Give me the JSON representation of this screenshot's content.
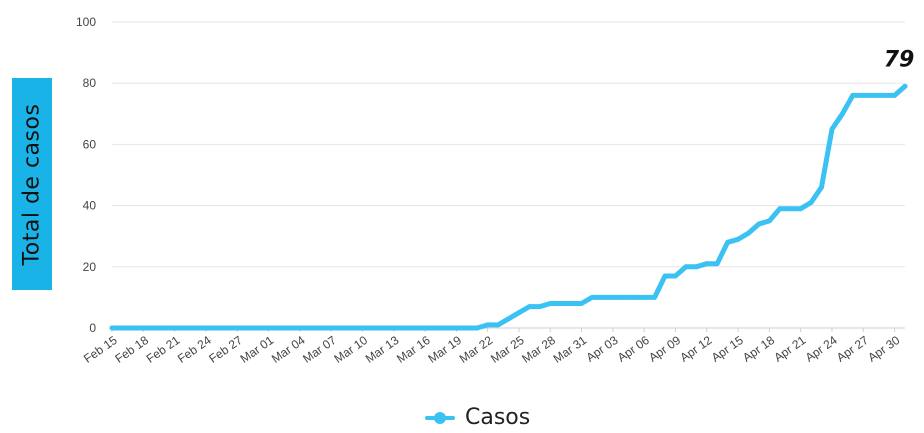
{
  "chart_data": {
    "type": "line",
    "ylabel": "Total de casos",
    "xlabel": "",
    "title": "",
    "ylim": [
      0,
      100
    ],
    "yticks": [
      0,
      20,
      40,
      60,
      80,
      100
    ],
    "grid": true,
    "legend_position": "bottom",
    "x_tick_labels": [
      "Feb 15",
      "Feb 18",
      "Feb 21",
      "Feb 24",
      "Feb 27",
      "Mar 01",
      "Mar 04",
      "Mar 07",
      "Mar 10",
      "Mar 13",
      "Mar 16",
      "Mar 19",
      "Mar 22",
      "Mar 25",
      "Mar 28",
      "Mar 31",
      "Apr 03",
      "Apr 06",
      "Apr 09",
      "Apr 12",
      "Apr 15",
      "Apr 18",
      "Apr 21",
      "Apr 24",
      "Apr 27",
      "Apr 30"
    ],
    "series": [
      {
        "name": "Casos",
        "color": "#3ac2f2",
        "x": [
          "Feb 15",
          "Mar 21",
          "Mar 22",
          "Mar 23",
          "Mar 24",
          "Mar 25",
          "Mar 26",
          "Mar 27",
          "Mar 28",
          "Mar 29",
          "Mar 30",
          "Mar 31",
          "Apr 01",
          "Apr 02",
          "Apr 03",
          "Apr 04",
          "Apr 05",
          "Apr 06",
          "Apr 07",
          "Apr 08",
          "Apr 09",
          "Apr 10",
          "Apr 11",
          "Apr 12",
          "Apr 13",
          "Apr 14",
          "Apr 15",
          "Apr 16",
          "Apr 17",
          "Apr 18",
          "Apr 19",
          "Apr 20",
          "Apr 21",
          "Apr 22",
          "Apr 23",
          "Apr 24",
          "Apr 25",
          "Apr 26",
          "Apr 27",
          "Apr 28",
          "Apr 29",
          "Apr 30",
          "May 01"
        ],
        "values": [
          0,
          0,
          1,
          1,
          3,
          5,
          7,
          7,
          8,
          8,
          8,
          8,
          10,
          10,
          10,
          10,
          10,
          10,
          10,
          17,
          17,
          20,
          20,
          21,
          21,
          28,
          29,
          31,
          34,
          35,
          39,
          39,
          39,
          41,
          46,
          65,
          70,
          76,
          76,
          76,
          76,
          76,
          79
        ]
      }
    ],
    "annotations": [
      {
        "text": "79",
        "x": "May 01",
        "y": 79
      }
    ]
  }
}
